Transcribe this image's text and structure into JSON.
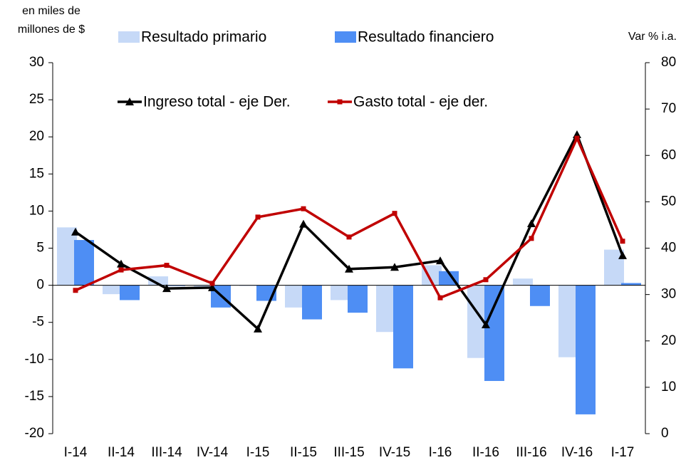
{
  "chart_data": {
    "type": "bar-line",
    "y_label": [
      "en miles de",
      "millones de $"
    ],
    "y2_label": "Var % i.a.",
    "categories": [
      "I-14",
      "II-14",
      "III-14",
      "IV-14",
      "I-15",
      "II-15",
      "III-15",
      "IV-15",
      "I-16",
      "II-16",
      "III-16",
      "IV-16",
      "I-17"
    ],
    "series": [
      {
        "name": "Resultado primario",
        "kind": "bar",
        "color": "#c6d9f7",
        "values": [
          7.8,
          -1.2,
          1.2,
          -0.2,
          -0.1,
          -3.0,
          -2.0,
          -6.3,
          2.7,
          -9.8,
          0.9,
          -9.7,
          4.8
        ]
      },
      {
        "name": "Resultado financiero",
        "kind": "bar",
        "color": "#4e8ef4",
        "values": [
          6.1,
          -2.0,
          -0.1,
          -3.0,
          -2.1,
          -4.6,
          -3.7,
          -11.2,
          1.9,
          -12.9,
          -2.8,
          -17.4,
          0.3
        ]
      },
      {
        "name": "Ingreso total - eje Der.",
        "kind": "line",
        "axis": "y2",
        "marker": "triangle",
        "color": "#000000",
        "values": [
          43.5,
          36.6,
          31.3,
          31.5,
          22.6,
          45.2,
          35.5,
          35.9,
          37.3,
          23.5,
          45.3,
          64.5,
          38.4
        ]
      },
      {
        "name": "Gasto total - eje der.",
        "kind": "line",
        "axis": "y2",
        "marker": "square",
        "color": "#c00000",
        "values": [
          30.9,
          35.3,
          36.3,
          32.4,
          46.7,
          48.5,
          42.4,
          47.5,
          29.3,
          33.2,
          42.1,
          63.7,
          41.5
        ]
      }
    ],
    "ylim": [
      -20,
      30
    ],
    "yticks": [
      -20,
      -15,
      -10,
      -5,
      0,
      5,
      10,
      15,
      20,
      25,
      30
    ],
    "y2lim": [
      0,
      80
    ],
    "y2ticks": [
      0,
      10,
      20,
      30,
      40,
      50,
      60,
      70,
      80
    ]
  }
}
